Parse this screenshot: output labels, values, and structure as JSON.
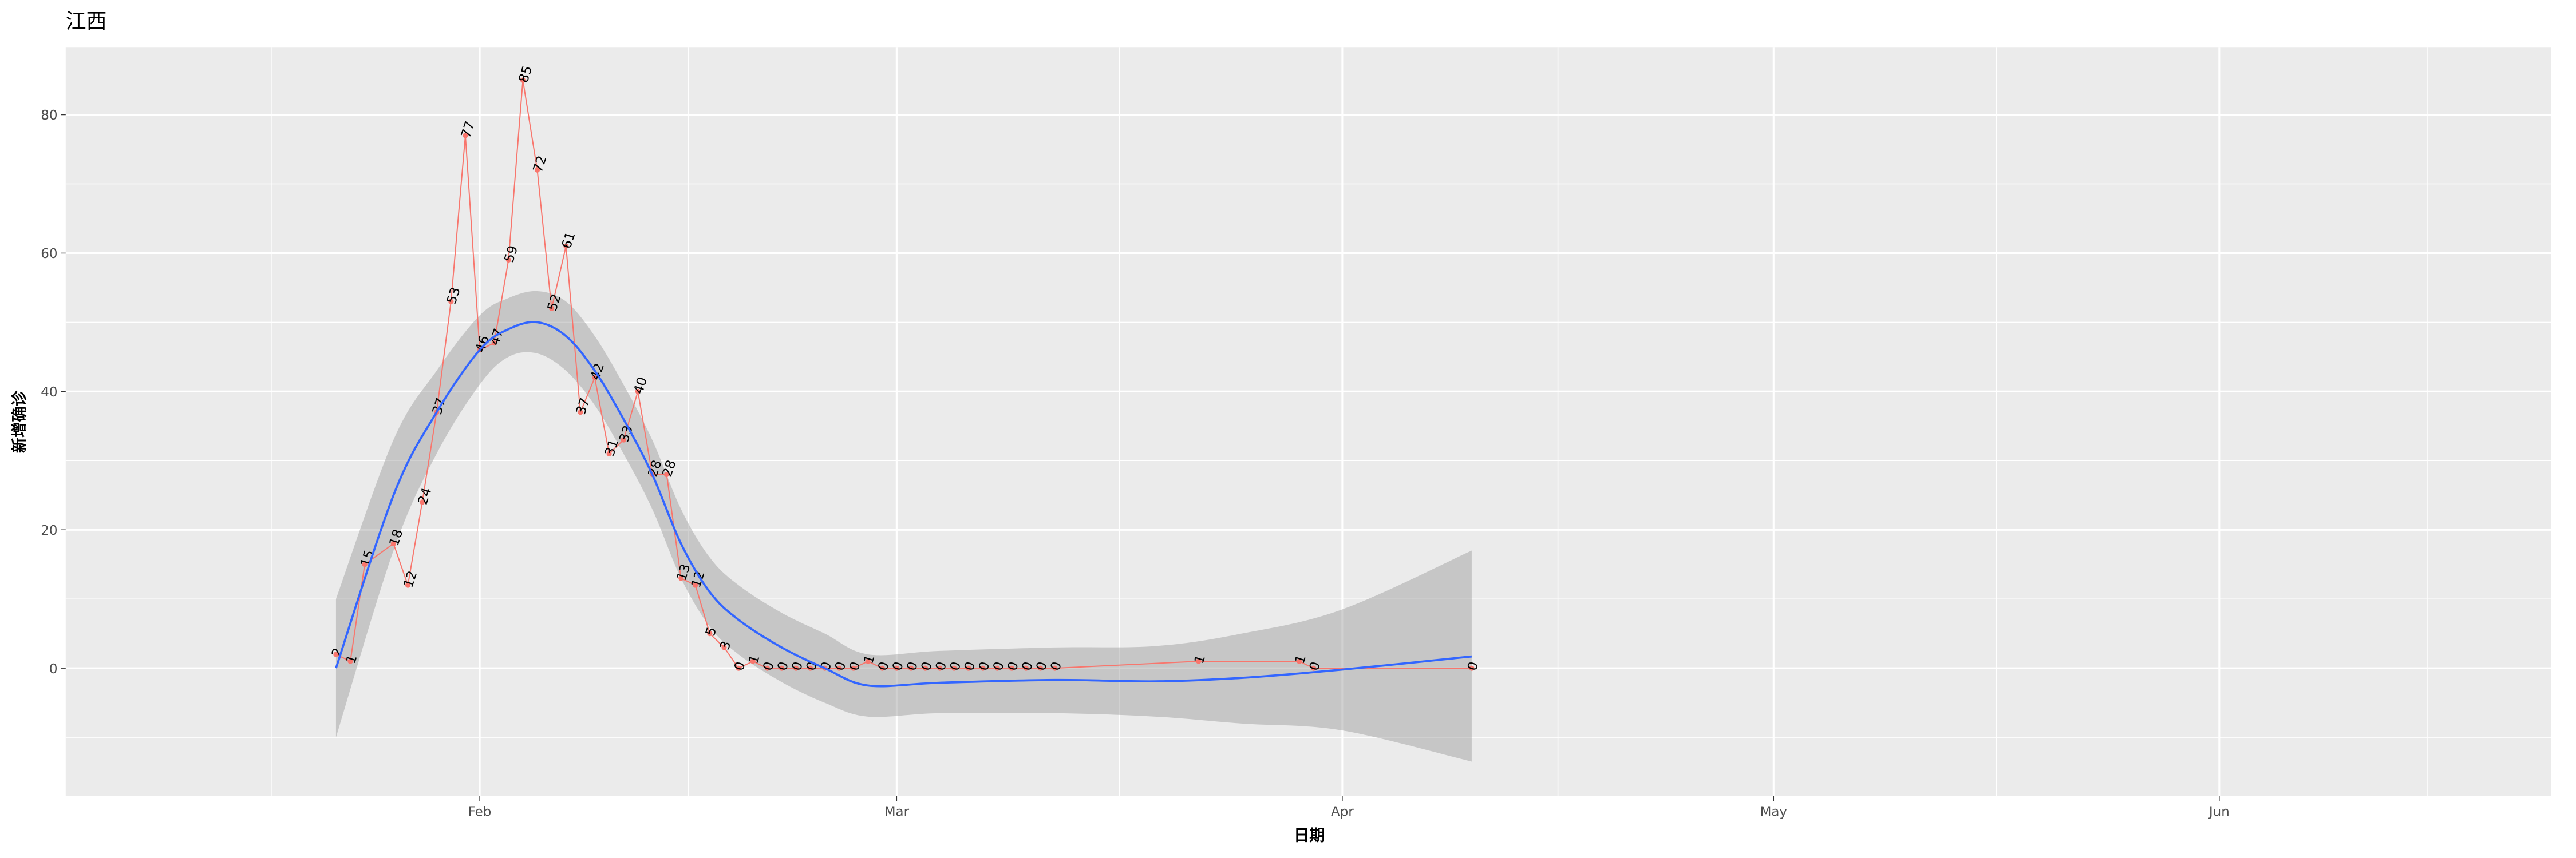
{
  "chart_data": {
    "type": "line",
    "title": "江西",
    "x_label": "日期",
    "y_label": "新增确诊",
    "x": [
      22,
      23,
      24,
      26,
      27,
      28,
      29,
      30,
      31,
      32,
      33,
      34,
      35,
      36,
      37,
      38,
      39,
      40,
      41,
      42,
      43,
      44,
      45,
      46,
      47,
      48,
      49,
      50,
      51,
      52,
      53,
      54,
      55,
      56,
      57,
      58,
      59,
      60,
      61,
      62,
      63,
      64,
      65,
      66,
      67,
      68,
      69,
      70,
      71,
      72,
      82,
      89,
      90,
      101
    ],
    "series": [
      {
        "color": "#f8766d",
        "values": [
          2,
          1,
          15,
          18,
          12,
          24,
          37,
          53,
          77,
          46,
          47,
          59,
          85,
          72,
          52,
          61,
          37,
          42,
          31,
          33,
          40,
          28,
          28,
          13,
          12,
          5,
          3,
          0,
          1,
          0,
          0,
          0,
          0,
          0,
          0,
          0,
          1,
          0,
          0,
          0,
          0,
          0,
          0,
          0,
          0,
          0,
          0,
          0,
          0,
          0,
          1,
          1,
          0,
          0
        ]
      }
    ],
    "smooth": {
      "color": "#3366ff",
      "band_color": "#999999",
      "x": [
        22,
        26,
        29,
        32,
        34,
        36,
        38,
        40,
        42,
        44,
        46,
        48,
        50,
        53,
        56,
        59,
        64,
        72,
        79,
        85,
        92,
        101
      ],
      "values": [
        0,
        25,
        37,
        46,
        49,
        50,
        48,
        43,
        36,
        28,
        18,
        11,
        7,
        3,
        0,
        -2.5,
        -2.1,
        -1.7,
        -1.9,
        -1.4,
        -0.2,
        1.7
      ],
      "lower": [
        -10,
        17,
        31,
        41,
        45,
        45.5,
        43,
        38,
        31,
        23,
        13,
        6,
        2,
        -2,
        -5,
        -7,
        -6.5,
        -6.5,
        -7,
        -8,
        -9,
        -13.5
      ],
      "upper": [
        10,
        33,
        43,
        51,
        53.5,
        54.5,
        53,
        48,
        41,
        33,
        23,
        16,
        12,
        8,
        5,
        2,
        2.5,
        3,
        3.2,
        5,
        8.5,
        17
      ]
    },
    "xlim": [
      3.2,
      176.1
    ],
    "ylim": [
      -18.5,
      89.7
    ],
    "xticks": [
      {
        "value": 32,
        "label": "Feb"
      },
      {
        "value": 61,
        "label": "Mar"
      },
      {
        "value": 92,
        "label": "Apr"
      },
      {
        "value": 122,
        "label": "May"
      },
      {
        "value": 153,
        "label": "Jun"
      }
    ],
    "xminor_ticks": [
      17.5,
      46.5,
      76.5,
      107,
      137.5,
      167.5
    ],
    "yticks": [
      0,
      20,
      40,
      60,
      80
    ],
    "yminor_ticks": [
      -10,
      10,
      30,
      50,
      70
    ],
    "grid": true
  }
}
